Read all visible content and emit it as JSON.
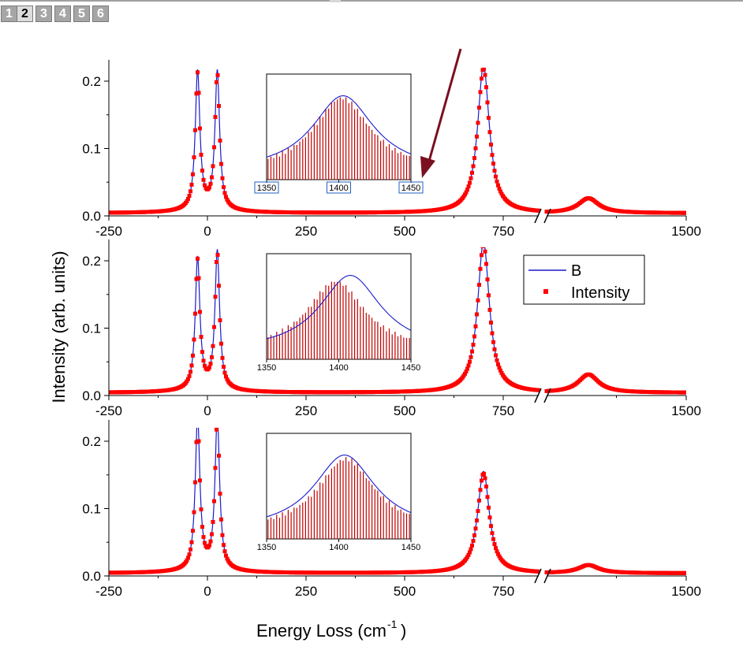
{
  "tabs": [
    {
      "label": "1",
      "active": false
    },
    {
      "label": "2",
      "active": true
    },
    {
      "label": "3",
      "active": false
    },
    {
      "label": "4",
      "active": false
    },
    {
      "label": "5",
      "active": false
    },
    {
      "label": "6",
      "active": false
    }
  ],
  "colors": {
    "fit_line": "#1a1acc",
    "intensity": "#ff0000",
    "inset_bars": "#c00000",
    "arrow": "#7a1020",
    "inset_tick_box": "#2060c0"
  },
  "chart_data": [
    {
      "type": "line",
      "panel": "top",
      "xlabel": "Energy Loss (cm-1)",
      "ylabel": "Intensity (arb. units)",
      "xlim": [
        -250,
        1500
      ],
      "axis_break": [
        840,
        1100
      ],
      "ylim": [
        0,
        0.22
      ],
      "x_ticks": [
        "-250",
        "0",
        "250",
        "500",
        "750",
        "1500"
      ],
      "y_ticks": [
        "0.0",
        "0.1",
        "0.2"
      ],
      "peaks": [
        {
          "center": -25,
          "height": 0.2
        },
        {
          "center": 25,
          "height": 0.2
        },
        {
          "center": 700,
          "height": 0.215
        },
        {
          "center": 1220,
          "height": 0.022
        }
      ],
      "series": [
        {
          "name": "B"
        },
        {
          "name": "Intensity"
        }
      ],
      "inset": {
        "type": "bar",
        "xlim": [
          1350,
          1450
        ],
        "x_ticks": [
          "1350",
          "1400",
          "1450"
        ],
        "fit_center": 1403,
        "bars_center": 1402,
        "bars_peak": 0.97
      },
      "annotation": "arrow pointing to 1450 tick of inset"
    },
    {
      "type": "line",
      "panel": "middle",
      "xlim": [
        -250,
        1500
      ],
      "axis_break": [
        840,
        1100
      ],
      "ylim": [
        0,
        0.22
      ],
      "x_ticks": [
        "-250",
        "0",
        "250",
        "500",
        "750",
        "1500"
      ],
      "y_ticks": [
        "0.0",
        "0.1",
        "0.2"
      ],
      "peaks": [
        {
          "center": -25,
          "height": 0.19
        },
        {
          "center": 25,
          "height": 0.2
        },
        {
          "center": 700,
          "height": 0.22
        },
        {
          "center": 1220,
          "height": 0.027
        }
      ],
      "legend": {
        "position": "right",
        "entries": [
          "B",
          "Intensity"
        ]
      },
      "inset": {
        "type": "bar",
        "xlim": [
          1350,
          1450
        ],
        "x_ticks": [
          "1350",
          "1400",
          "1450"
        ],
        "fit_center": 1408,
        "bars_center": 1398,
        "bars_peak": 0.92
      }
    },
    {
      "type": "line",
      "panel": "bottom",
      "xlim": [
        -250,
        1500
      ],
      "axis_break": [
        840,
        1100
      ],
      "ylim": [
        0,
        0.22
      ],
      "x_ticks": [
        "-250",
        "0",
        "250",
        "500",
        "750",
        "1500"
      ],
      "y_ticks": [
        "0.0",
        "0.1",
        "0.2"
      ],
      "peaks": [
        {
          "center": -25,
          "height": 0.22
        },
        {
          "center": 25,
          "height": 0.22
        },
        {
          "center": 700,
          "height": 0.148
        },
        {
          "center": 1220,
          "height": 0.012
        }
      ],
      "inset": {
        "type": "bar",
        "xlim": [
          1350,
          1450
        ],
        "x_ticks": [
          "1350",
          "1400",
          "1450"
        ],
        "fit_center": 1404,
        "bars_center": 1405,
        "bars_peak": 0.95
      }
    }
  ],
  "labels": {
    "ylabel": "Intensity (arb. units)",
    "xlabel_main": "Energy Loss (cm",
    "xlabel_sup": "-1",
    "xlabel_close": ")",
    "legend_b": "B",
    "legend_intensity": "Intensity"
  }
}
